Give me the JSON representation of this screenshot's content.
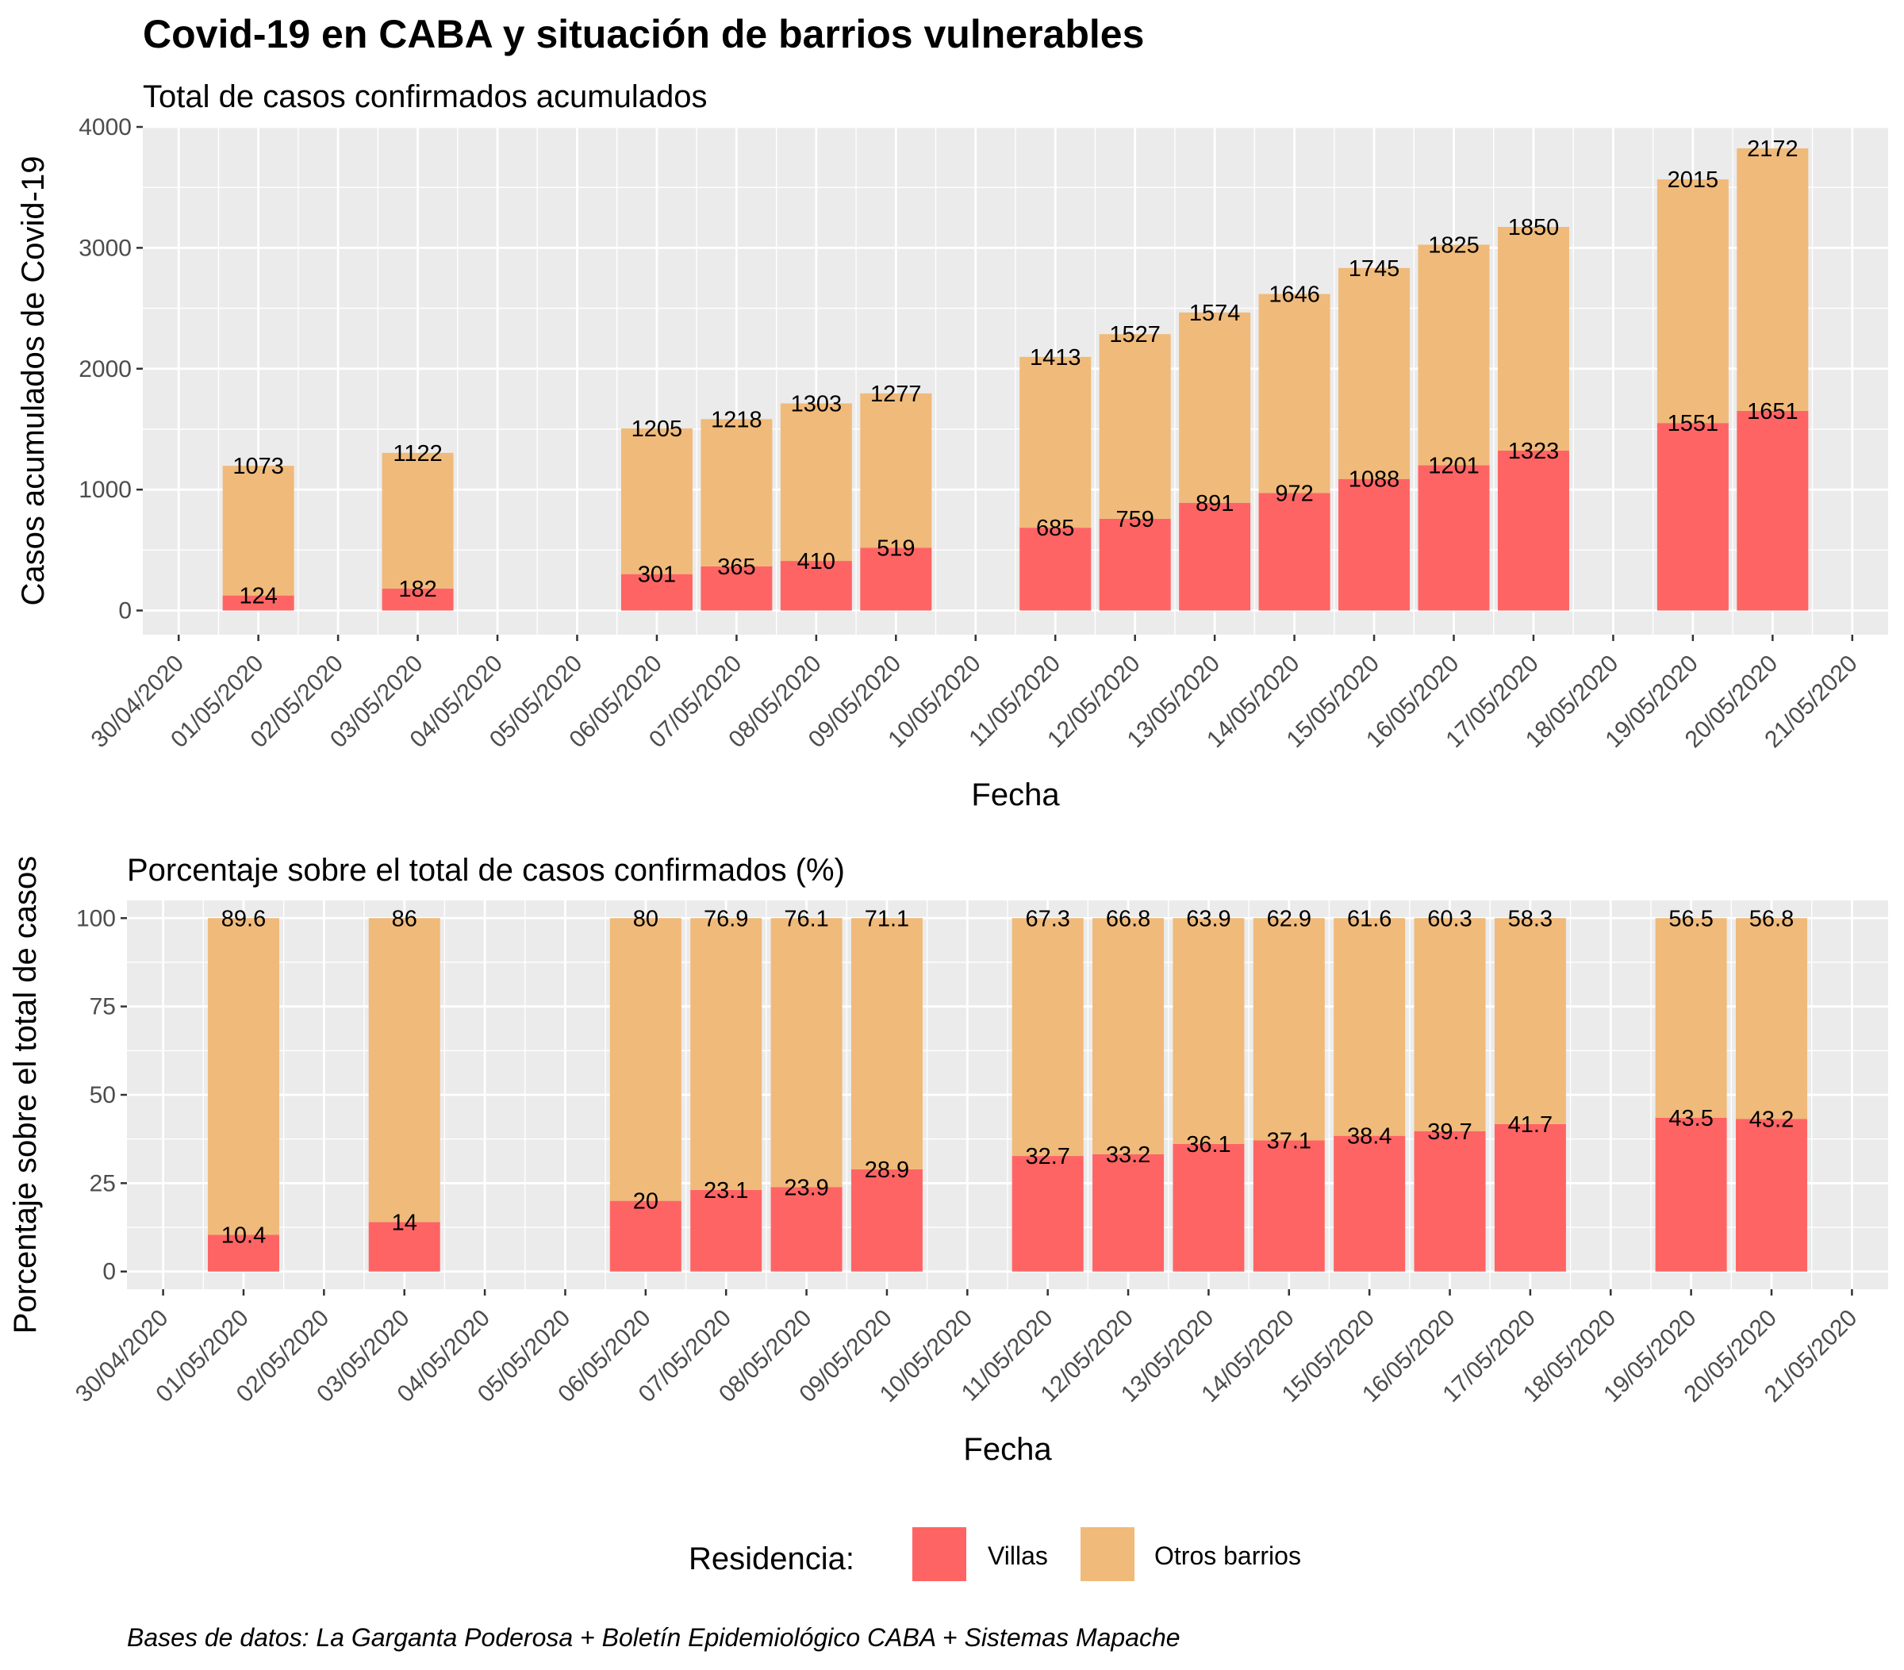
{
  "title": "Covid-19 en CABA y situación de barrios vulnerables",
  "caption": "Bases de datos: La Garganta Poderosa + Boletín Epidemiológico CABA + Sistemas Mapache",
  "legend": {
    "title": "Residencia:",
    "items": [
      {
        "name": "Villas",
        "color": "#FF6464"
      },
      {
        "name": "Otros barrios",
        "color": "#F0BA7A"
      }
    ]
  },
  "chart_data": [
    {
      "type": "bar",
      "stacked": true,
      "subtitle": "Total de casos confirmados acumulados",
      "xlabel": "Fecha",
      "ylabel": "Casos acumulados de Covid-19",
      "ylim": [
        -200,
        4000
      ],
      "yticks": [
        0,
        1000,
        2000,
        3000,
        4000
      ],
      "grid": true,
      "x_ticks": [
        "30/04/2020",
        "01/05/2020",
        "02/05/2020",
        "03/05/2020",
        "04/05/2020",
        "05/05/2020",
        "06/05/2020",
        "07/05/2020",
        "08/05/2020",
        "09/05/2020",
        "10/05/2020",
        "11/05/2020",
        "12/05/2020",
        "13/05/2020",
        "14/05/2020",
        "15/05/2020",
        "16/05/2020",
        "17/05/2020",
        "18/05/2020",
        "19/05/2020",
        "20/05/2020",
        "21/05/2020"
      ],
      "categories": [
        "01/05/2020",
        "03/05/2020",
        "06/05/2020",
        "07/05/2020",
        "08/05/2020",
        "09/05/2020",
        "11/05/2020",
        "12/05/2020",
        "13/05/2020",
        "14/05/2020",
        "15/05/2020",
        "16/05/2020",
        "17/05/2020",
        "19/05/2020",
        "20/05/2020"
      ],
      "series": [
        {
          "name": "Villas",
          "color": "#FF6464",
          "values": [
            124,
            182,
            301,
            365,
            410,
            519,
            685,
            759,
            891,
            972,
            1088,
            1201,
            1323,
            1551,
            1651
          ]
        },
        {
          "name": "Otros barrios",
          "color": "#F0BA7A",
          "values": [
            1073,
            1122,
            1205,
            1218,
            1303,
            1277,
            1413,
            1527,
            1574,
            1646,
            1745,
            1825,
            1850,
            2015,
            2172
          ]
        }
      ]
    },
    {
      "type": "bar",
      "stacked": true,
      "subtitle": "Porcentaje sobre el total de casos confirmados (%)",
      "xlabel": "Fecha",
      "ylabel": "Porcentaje sobre el total de casos",
      "ylim": [
        -5,
        105
      ],
      "yticks": [
        0,
        25,
        50,
        75,
        100
      ],
      "grid": true,
      "x_ticks": [
        "30/04/2020",
        "01/05/2020",
        "02/05/2020",
        "03/05/2020",
        "04/05/2020",
        "05/05/2020",
        "06/05/2020",
        "07/05/2020",
        "08/05/2020",
        "09/05/2020",
        "10/05/2020",
        "11/05/2020",
        "12/05/2020",
        "13/05/2020",
        "14/05/2020",
        "15/05/2020",
        "16/05/2020",
        "17/05/2020",
        "18/05/2020",
        "19/05/2020",
        "20/05/2020",
        "21/05/2020"
      ],
      "categories": [
        "01/05/2020",
        "03/05/2020",
        "06/05/2020",
        "07/05/2020",
        "08/05/2020",
        "09/05/2020",
        "11/05/2020",
        "12/05/2020",
        "13/05/2020",
        "14/05/2020",
        "15/05/2020",
        "16/05/2020",
        "17/05/2020",
        "19/05/2020",
        "20/05/2020"
      ],
      "series": [
        {
          "name": "Villas",
          "color": "#FF6464",
          "values": [
            10.4,
            14,
            20,
            23.1,
            23.9,
            28.9,
            32.7,
            33.2,
            36.1,
            37.1,
            38.4,
            39.7,
            41.7,
            43.5,
            43.2
          ]
        },
        {
          "name": "Otros barrios",
          "color": "#F0BA7A",
          "values": [
            89.6,
            86,
            80,
            76.9,
            76.1,
            71.1,
            67.3,
            66.8,
            63.9,
            62.9,
            61.6,
            60.3,
            58.3,
            56.5,
            56.8
          ]
        }
      ]
    }
  ]
}
